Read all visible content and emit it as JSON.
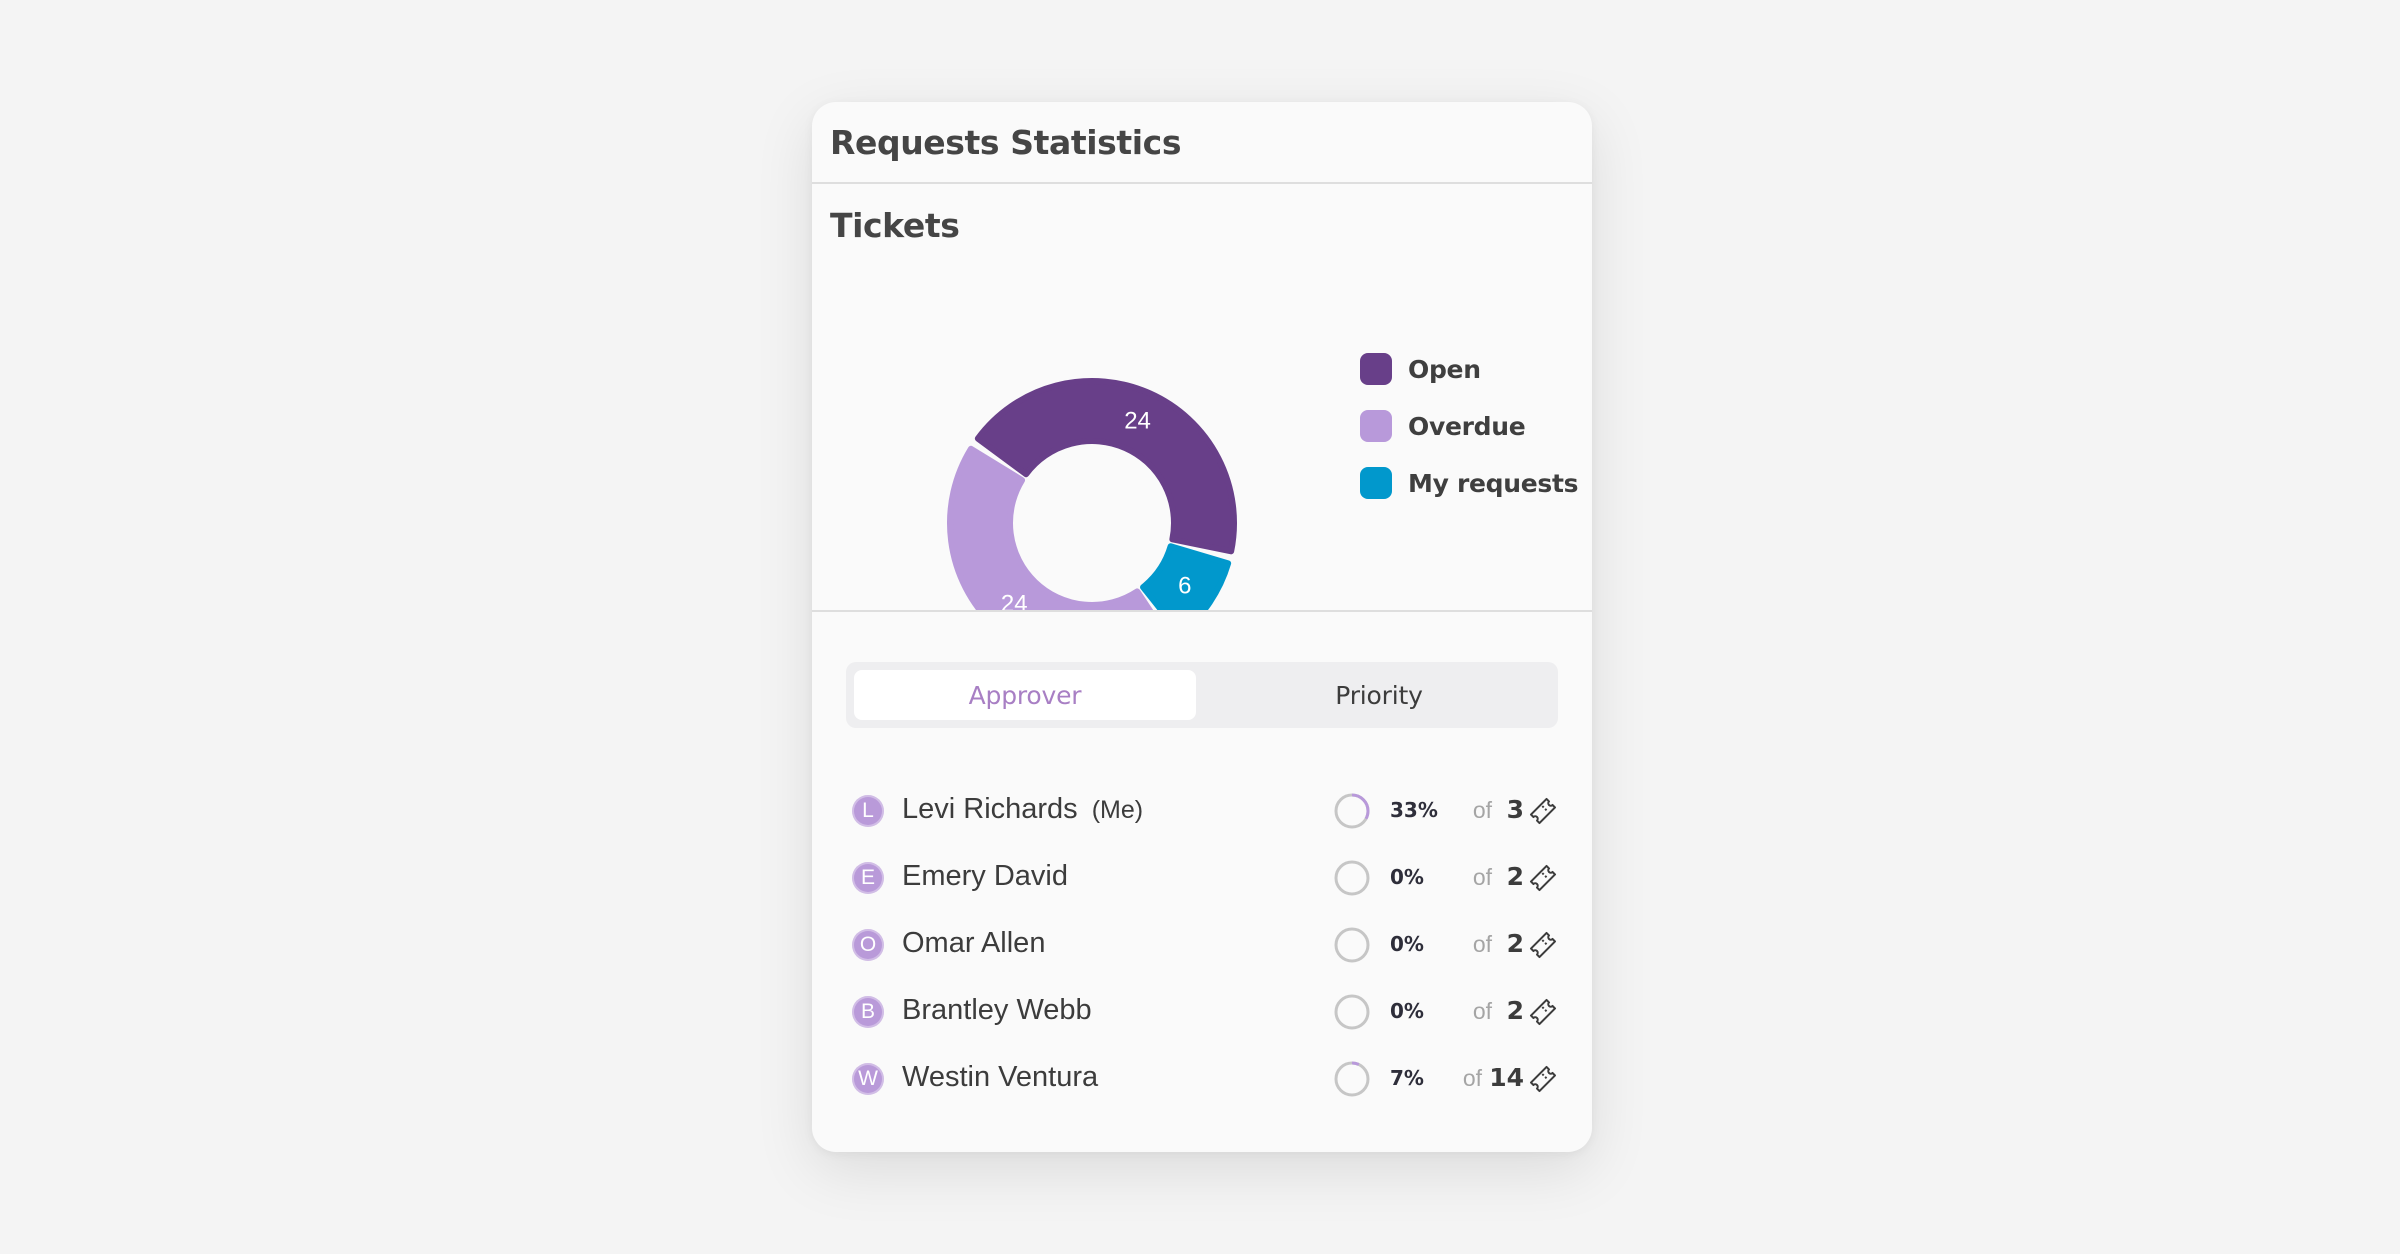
{
  "header": {
    "title": "Requests Statistics"
  },
  "tickets": {
    "title": "Tickets",
    "donut": {
      "segments": [
        {
          "name": "Open",
          "value": 24,
          "label": "24",
          "color": "#683f89"
        },
        {
          "name": "My requests",
          "value": 6,
          "label": "6",
          "color": "#0198cc"
        },
        {
          "name": "Overdue",
          "value": 24,
          "label": "24",
          "color": "#b899da"
        }
      ]
    },
    "legend": [
      {
        "label": "Open",
        "color": "#683f89"
      },
      {
        "label": "Overdue",
        "color": "#b899da"
      },
      {
        "label": "My requests",
        "color": "#0198cc"
      }
    ]
  },
  "tabs": {
    "approver": "Approver",
    "priority": "Priority",
    "active": "approver"
  },
  "approvers": [
    {
      "initial": "L",
      "name": "Levi Richards",
      "tag": "(Me)",
      "percent_label": "33%",
      "progress": 0.33,
      "of": "of",
      "count": "3"
    },
    {
      "initial": "E",
      "name": "Emery David",
      "tag": "",
      "percent_label": "0%",
      "progress": 0,
      "of": "of",
      "count": "2"
    },
    {
      "initial": "O",
      "name": "Omar Allen",
      "tag": "",
      "percent_label": "0%",
      "progress": 0,
      "of": "of",
      "count": "2"
    },
    {
      "initial": "B",
      "name": "Brantley Webb",
      "tag": "",
      "percent_label": "0%",
      "progress": 0,
      "of": "of",
      "count": "2"
    },
    {
      "initial": "W",
      "name": "Westin Ventura",
      "tag": "",
      "percent_label": "7%",
      "progress": 0.07,
      "of": "of",
      "count": "14"
    }
  ],
  "icons": {
    "ticket": "ticket-icon",
    "progress": "progress-ring-icon"
  }
}
